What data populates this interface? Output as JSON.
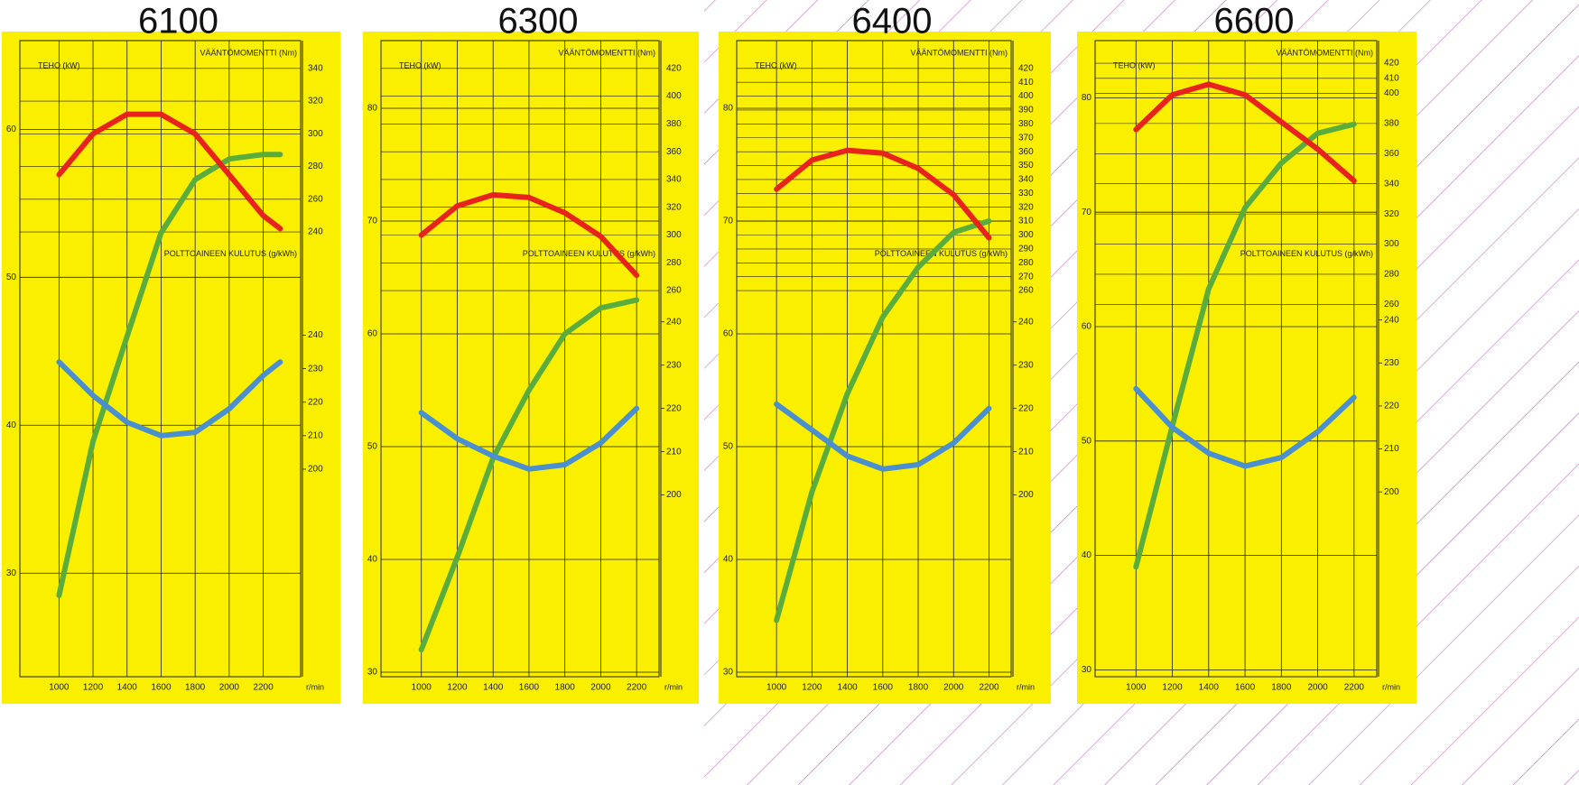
{
  "chart_data": [
    {
      "type": "line",
      "title": "6100",
      "xlabel": "r/min",
      "ylabel": "TEHO (kW)",
      "y2label": "VÄÄNTÖMOMENTTI (Nm)",
      "y3label": "POLTTOAINEEN KULUTUS (g/kWh)",
      "x": [
        1000,
        1200,
        1400,
        1600,
        1800,
        2000,
        2200,
        2300
      ],
      "xlim": [
        770,
        2420
      ],
      "xticks": [
        1000,
        1200,
        1400,
        1600,
        1800,
        2000,
        2200
      ],
      "ylim": [
        23,
        66
      ],
      "yticks": [
        30,
        40,
        50,
        60
      ],
      "y2lim": [
        -32,
        357
      ],
      "y2ticks": [
        240,
        260,
        280,
        300,
        320,
        340
      ],
      "y3lim": [
        138,
        328
      ],
      "y3ticks": [
        200,
        210,
        220,
        230,
        240
      ],
      "grid": true,
      "series": [
        {
          "color": "#5aad3c",
          "axis": "y",
          "values": [
            28.5,
            38.9,
            46,
            53,
            56.6,
            58,
            58.3,
            58.3
          ]
        },
        {
          "color": "#e8231c",
          "axis": "y2",
          "values": [
            275,
            300,
            312,
            312,
            300,
            275,
            250,
            242
          ]
        },
        {
          "color": "#4a8fd0",
          "axis": "y3",
          "values": [
            232,
            222,
            214,
            210,
            211,
            218,
            228,
            232
          ]
        }
      ]
    },
    {
      "type": "line",
      "title": "6300",
      "xlabel": "r/min",
      "ylabel": "TEHO (kW)",
      "y2label": "VÄÄNTÖMOMENTTI (Nm)",
      "y3label": "POLTTOAINEEN KULUTUS (g/kWh)",
      "x": [
        1000,
        1200,
        1400,
        1600,
        1800,
        2000,
        2200
      ],
      "xlim": [
        775,
        2325
      ],
      "xticks": [
        1000,
        1200,
        1400,
        1600,
        1800,
        2000,
        2200
      ],
      "ylim": [
        29.6,
        86
      ],
      "yticks": [
        30,
        40,
        50,
        60,
        70,
        80
      ],
      "y2lim": [
        -18,
        440
      ],
      "y2ticks": [
        260,
        280,
        300,
        320,
        340,
        360,
        380,
        400,
        420
      ],
      "y3lim": [
        158,
        305
      ],
      "y3ticks": [
        200,
        210,
        220,
        230,
        240
      ],
      "grid": true,
      "series": [
        {
          "color": "#5aad3c",
          "axis": "y",
          "values": [
            32,
            40.2,
            49,
            55,
            60,
            62.3,
            63
          ]
        },
        {
          "color": "#e8231c",
          "axis": "y2",
          "values": [
            300,
            321,
            329,
            327,
            316,
            299,
            271
          ]
        },
        {
          "color": "#4a8fd0",
          "axis": "y3",
          "values": [
            219,
            213,
            209,
            206,
            207,
            212,
            220
          ]
        }
      ]
    },
    {
      "type": "line",
      "title": "6400",
      "xlabel": "r/min",
      "ylabel": "TEHO (kW)",
      "y2label": "VÄÄNTÖMOMENTTI (Nm)",
      "y3label": "POLTTOAINEEN KULUTUS (g/kWh)",
      "x": [
        1000,
        1200,
        1400,
        1600,
        1800,
        2000,
        2200
      ],
      "xlim": [
        775,
        2325
      ],
      "xticks": [
        1000,
        1200,
        1400,
        1600,
        1800,
        2000,
        2200
      ],
      "ylim": [
        29.6,
        86
      ],
      "yticks": [
        30,
        40,
        50,
        60,
        70,
        80
      ],
      "y2lim": [
        -18,
        440
      ],
      "y2ticks": [
        260,
        270,
        280,
        290,
        300,
        310,
        320,
        330,
        340,
        350,
        360,
        370,
        380,
        390,
        400,
        410,
        420
      ],
      "y3lim": [
        158,
        305
      ],
      "y3ticks": [
        200,
        210,
        220,
        230,
        240
      ],
      "grid": true,
      "series": [
        {
          "color": "#5aad3c",
          "axis": "y",
          "values": [
            34.6,
            46,
            54.7,
            61.5,
            65.9,
            69,
            70
          ]
        },
        {
          "color": "#e8231c",
          "axis": "y2",
          "values": [
            333,
            354,
            361,
            359,
            348,
            329,
            298
          ]
        },
        {
          "color": "#4a8fd0",
          "axis": "y3",
          "values": [
            221,
            215,
            209,
            206,
            207,
            212,
            220
          ]
        }
      ]
    },
    {
      "type": "line",
      "title": "6600",
      "xlabel": "r/min",
      "ylabel": "TEHO (kW)",
      "y2label": "VÄÄNTÖMOMENTTI (Nm)",
      "y3label": "POLTTOAINEEN KULUTUS (g/kWh)",
      "x": [
        1000,
        1200,
        1400,
        1600,
        1800,
        2000,
        2200
      ],
      "xlim": [
        775,
        2325
      ],
      "xticks": [
        1000,
        1200,
        1400,
        1600,
        1800,
        2000,
        2200
      ],
      "ylim": [
        29.4,
        85
      ],
      "yticks": [
        30,
        40,
        50,
        60,
        70,
        80
      ],
      "y2lim": [
        13,
        435
      ],
      "y2ticks": [
        260,
        280,
        300,
        320,
        340,
        360,
        380,
        400,
        410,
        420
      ],
      "y3lim": [
        157,
        305
      ],
      "y3ticks": [
        200,
        210,
        220,
        230,
        240
      ],
      "grid": true,
      "series": [
        {
          "color": "#5aad3c",
          "axis": "y",
          "values": [
            39,
            51.3,
            63.3,
            70.4,
            74.3,
            76.9,
            77.7
          ]
        },
        {
          "color": "#e8231c",
          "axis": "y2",
          "values": [
            376,
            399,
            406,
            399,
            381,
            363,
            342
          ]
        },
        {
          "color": "#4a8fd0",
          "axis": "y3",
          "values": [
            224,
            215,
            209,
            206,
            208,
            214,
            222
          ]
        }
      ]
    }
  ]
}
